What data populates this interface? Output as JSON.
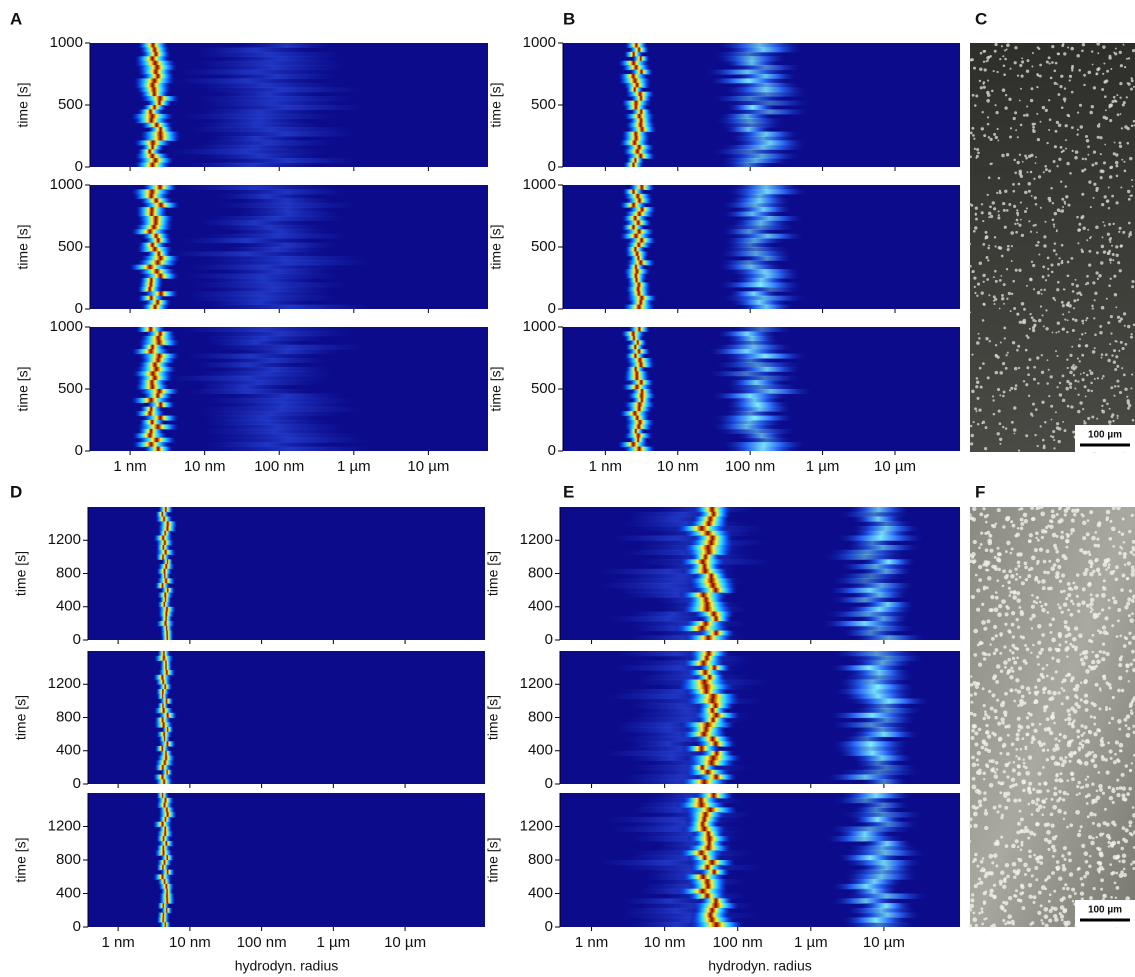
{
  "chart_data": [
    {
      "type": "heatmap",
      "label": "A",
      "ylabel": "time [s]",
      "log_x": true,
      "xlim": [
        2.9e-10,
        6.3e-05
      ],
      "ylim": [
        0,
        1000
      ],
      "yticks": [
        0,
        500,
        1000
      ],
      "xticks": [
        {
          "value": 1e-09,
          "label": "1 nm"
        },
        {
          "value": 1e-08,
          "label": "10 nm"
        },
        {
          "value": 1e-07,
          "label": "100 nm"
        },
        {
          "value": 1e-06,
          "label": "1 µm"
        },
        {
          "value": 1e-05,
          "label": "10 µm"
        }
      ]
    },
    {
      "type": "heatmap",
      "label": "B",
      "ylabel": "time [s]",
      "log_x": true,
      "xlim": [
        2.6e-10,
        7.9e-05
      ],
      "ylim": [
        0,
        1000
      ],
      "yticks": [
        0,
        500,
        1000
      ],
      "xticks": [
        {
          "value": 1e-09,
          "label": "1 nm"
        },
        {
          "value": 1e-08,
          "label": "10 nm"
        },
        {
          "value": 1e-07,
          "label": "100 nm"
        },
        {
          "value": 1e-06,
          "label": "1 µm"
        },
        {
          "value": 1e-05,
          "label": "10 µm"
        }
      ]
    },
    {
      "type": "image",
      "label": "C",
      "scale_bar": "100 µm"
    },
    {
      "type": "heatmap",
      "label": "D",
      "ylabel": "time [s]",
      "xlabel": "hydrodyn. radius",
      "log_x": true,
      "xlim": [
        3.8e-10,
        0.00013
      ],
      "ylim": [
        0,
        1600
      ],
      "yticks": [
        0,
        400,
        800,
        1200
      ],
      "xticks": [
        {
          "value": 1e-09,
          "label": "1 nm"
        },
        {
          "value": 1e-08,
          "label": "10 nm"
        },
        {
          "value": 1e-07,
          "label": "100 nm"
        },
        {
          "value": 1e-06,
          "label": "1 µm"
        },
        {
          "value": 1e-05,
          "label": "10 µm"
        }
      ]
    },
    {
      "type": "heatmap",
      "label": "E",
      "ylabel": "time [s]",
      "xlabel": "hydrodyn. radius",
      "log_x": true,
      "xlim": [
        3.7e-10,
        0.00011
      ],
      "ylim": [
        0,
        1600
      ],
      "yticks": [
        0,
        400,
        800,
        1200
      ],
      "xticks": [
        {
          "value": 1e-09,
          "label": "1 nm"
        },
        {
          "value": 1e-08,
          "label": "10 nm"
        },
        {
          "value": 1e-07,
          "label": "100 nm"
        },
        {
          "value": 1e-06,
          "label": "1 µm"
        },
        {
          "value": 1e-05,
          "label": "10 µm"
        }
      ]
    },
    {
      "type": "image",
      "label": "F",
      "scale_bar": "100 µm"
    }
  ]
}
